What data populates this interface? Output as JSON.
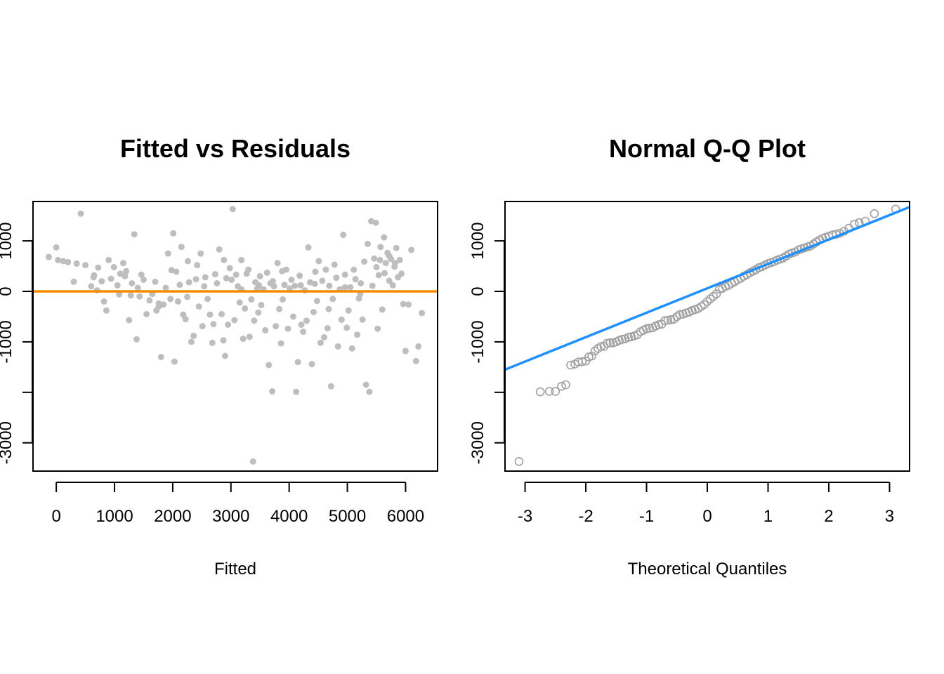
{
  "colors": {
    "scatter_points": "#bebebe",
    "qq_points": "#a0a0a0",
    "zero_line": "#ff8c00",
    "qq_line": "#1e90ff"
  },
  "chart_data": [
    {
      "type": "scatter",
      "title": "Fitted vs Residuals",
      "xlabel": "Fitted",
      "ylabel": "",
      "xlim": [
        -400,
        6550
      ],
      "ylim": [
        -3560,
        1780
      ],
      "x_ticks": [
        0,
        1000,
        2000,
        3000,
        4000,
        5000,
        6000
      ],
      "y_ticks": [
        -3000,
        -2000,
        -1000,
        0,
        1000
      ],
      "y_tick_labels": [
        "-3000",
        "",
        "-1000",
        "0",
        "1000"
      ],
      "reference_line": {
        "type": "horizontal",
        "y": 0
      },
      "marker": "filled-circle",
      "points": [
        [
          -130,
          680
        ],
        [
          0,
          870
        ],
        [
          30,
          620
        ],
        [
          120,
          600
        ],
        [
          300,
          190
        ],
        [
          350,
          550
        ],
        [
          420,
          1540
        ],
        [
          500,
          520
        ],
        [
          600,
          100
        ],
        [
          650,
          320
        ],
        [
          700,
          20
        ],
        [
          720,
          470
        ],
        [
          780,
          200
        ],
        [
          820,
          -200
        ],
        [
          860,
          -380
        ],
        [
          900,
          620
        ],
        [
          940,
          250
        ],
        [
          990,
          480
        ],
        [
          1050,
          120
        ],
        [
          1080,
          -60
        ],
        [
          1100,
          350
        ],
        [
          1150,
          560
        ],
        [
          1200,
          400
        ],
        [
          1250,
          -570
        ],
        [
          1280,
          -80
        ],
        [
          1300,
          160
        ],
        [
          1340,
          1130
        ],
        [
          1380,
          -950
        ],
        [
          1400,
          70
        ],
        [
          1430,
          -100
        ],
        [
          1460,
          330
        ],
        [
          1500,
          230
        ],
        [
          1550,
          -450
        ],
        [
          1600,
          -180
        ],
        [
          1650,
          -50
        ],
        [
          1700,
          190
        ],
        [
          1720,
          -380
        ],
        [
          1760,
          -240
        ],
        [
          1800,
          -1300
        ],
        [
          1840,
          -260
        ],
        [
          1880,
          70
        ],
        [
          1920,
          750
        ],
        [
          1960,
          -150
        ],
        [
          1980,
          420
        ],
        [
          2010,
          1150
        ],
        [
          2030,
          -1390
        ],
        [
          2060,
          390
        ],
        [
          2090,
          -200
        ],
        [
          2120,
          130
        ],
        [
          2150,
          880
        ],
        [
          2180,
          -460
        ],
        [
          2220,
          -550
        ],
        [
          2250,
          -110
        ],
        [
          2280,
          180
        ],
        [
          2320,
          -1000
        ],
        [
          2360,
          -880
        ],
        [
          2400,
          240
        ],
        [
          2420,
          520
        ],
        [
          2450,
          -300
        ],
        [
          2480,
          750
        ],
        [
          2510,
          -690
        ],
        [
          2540,
          100
        ],
        [
          2560,
          280
        ],
        [
          2600,
          -150
        ],
        [
          2640,
          -460
        ],
        [
          2680,
          -1020
        ],
        [
          2700,
          -650
        ],
        [
          2730,
          340
        ],
        [
          2760,
          160
        ],
        [
          2800,
          830
        ],
        [
          2840,
          -450
        ],
        [
          2870,
          -970
        ],
        [
          2900,
          -1280
        ],
        [
          2920,
          260
        ],
        [
          2950,
          -660
        ],
        [
          2980,
          460
        ],
        [
          3010,
          230
        ],
        [
          3030,
          1630
        ],
        [
          3060,
          -570
        ],
        [
          3090,
          330
        ],
        [
          3120,
          100
        ],
        [
          3150,
          -220
        ],
        [
          3180,
          620
        ],
        [
          3210,
          -940
        ],
        [
          3240,
          -340
        ],
        [
          3270,
          350
        ],
        [
          3300,
          430
        ],
        [
          3320,
          -900
        ],
        [
          3350,
          -160
        ],
        [
          3380,
          -3370
        ],
        [
          3400,
          -580
        ],
        [
          3420,
          180
        ],
        [
          3450,
          50
        ],
        [
          3470,
          -420
        ],
        [
          3500,
          300
        ],
        [
          3520,
          -270
        ],
        [
          3560,
          40
        ],
        [
          3590,
          -770
        ],
        [
          3620,
          370
        ],
        [
          3650,
          -1460
        ],
        [
          3680,
          160
        ],
        [
          3710,
          -1980
        ],
        [
          3740,
          100
        ],
        [
          3770,
          -690
        ],
        [
          3800,
          560
        ],
        [
          3830,
          -350
        ],
        [
          3860,
          -1030
        ],
        [
          3890,
          -160
        ],
        [
          3920,
          130
        ],
        [
          3950,
          430
        ],
        [
          3980,
          -740
        ],
        [
          4010,
          60
        ],
        [
          4040,
          230
        ],
        [
          4070,
          -500
        ],
        [
          4100,
          110
        ],
        [
          4120,
          -1990
        ],
        [
          4150,
          -1400
        ],
        [
          4180,
          310
        ],
        [
          4210,
          -660
        ],
        [
          4240,
          -800
        ],
        [
          4270,
          20
        ],
        [
          4300,
          -580
        ],
        [
          4330,
          870
        ],
        [
          4360,
          180
        ],
        [
          4390,
          -1440
        ],
        [
          4420,
          -410
        ],
        [
          4450,
          390
        ],
        [
          4480,
          -190
        ],
        [
          4510,
          600
        ],
        [
          4540,
          -1020
        ],
        [
          4570,
          210
        ],
        [
          4600,
          -910
        ],
        [
          4630,
          430
        ],
        [
          4660,
          -730
        ],
        [
          4690,
          110
        ],
        [
          4720,
          -1880
        ],
        [
          4750,
          -150
        ],
        [
          4780,
          530
        ],
        [
          4810,
          270
        ],
        [
          4840,
          -1090
        ],
        [
          4870,
          40
        ],
        [
          4900,
          -560
        ],
        [
          4930,
          1120
        ],
        [
          4960,
          330
        ],
        [
          4990,
          -720
        ],
        [
          5020,
          -380
        ],
        [
          5050,
          80
        ],
        [
          5080,
          -1130
        ],
        [
          5110,
          430
        ],
        [
          5140,
          240
        ],
        [
          5170,
          -860
        ],
        [
          5200,
          -140
        ],
        [
          5230,
          160
        ],
        [
          5260,
          -560
        ],
        [
          5290,
          590
        ],
        [
          5320,
          -1850
        ],
        [
          5350,
          940
        ],
        [
          5380,
          -1990
        ],
        [
          5410,
          1390
        ],
        [
          5430,
          110
        ],
        [
          5460,
          650
        ],
        [
          5490,
          1360
        ],
        [
          5520,
          -740
        ],
        [
          5540,
          320
        ],
        [
          5570,
          880
        ],
        [
          5600,
          -360
        ],
        [
          5630,
          1070
        ],
        [
          5660,
          560
        ],
        [
          5690,
          760
        ],
        [
          5720,
          210
        ],
        [
          5750,
          640
        ],
        [
          5780,
          120
        ],
        [
          5810,
          490
        ],
        [
          5840,
          860
        ],
        [
          5870,
          280
        ],
        [
          5900,
          620
        ],
        [
          5930,
          350
        ],
        [
          5960,
          -250
        ],
        [
          6000,
          -1180
        ],
        [
          6050,
          -260
        ],
        [
          6100,
          820
        ],
        [
          6180,
          -1380
        ],
        [
          6220,
          -1090
        ],
        [
          6280,
          -430
        ],
        [
          200,
          580
        ],
        [
          640,
          280
        ],
        [
          1180,
          300
        ],
        [
          1760,
          -300
        ],
        [
          2260,
          600
        ],
        [
          2880,
          620
        ],
        [
          3180,
          40
        ],
        [
          3480,
          120
        ],
        [
          3720,
          200
        ],
        [
          3880,
          400
        ],
        [
          4200,
          120
        ],
        [
          4440,
          150
        ],
        [
          4680,
          -350
        ],
        [
          4960,
          80
        ],
        [
          5220,
          -50
        ],
        [
          5500,
          480
        ],
        [
          5560,
          620
        ],
        [
          5640,
          360
        ],
        [
          5720,
          700
        ],
        [
          5820,
          560
        ]
      ]
    },
    {
      "type": "scatter",
      "title": "Normal Q-Q Plot",
      "xlabel": "Theoretical Quantiles",
      "ylabel": "",
      "xlim": [
        -3.33,
        3.33
      ],
      "ylim": [
        -3560,
        1780
      ],
      "x_ticks": [
        -3,
        -2,
        -1,
        0,
        1,
        2,
        3
      ],
      "y_ticks": [
        -3000,
        -2000,
        -1000,
        0,
        1000
      ],
      "y_tick_labels": [
        "-3000",
        "",
        "-1000",
        "0",
        "1000"
      ],
      "reference_line": {
        "type": "qqline",
        "x1": -3.33,
        "y1": -1550,
        "x2": 3.33,
        "y2": 1670
      },
      "marker": "open-circle",
      "points": [
        [
          -3.1,
          -3370
        ],
        [
          -2.75,
          -1990
        ],
        [
          -2.6,
          -1980
        ],
        [
          -2.5,
          -1980
        ],
        [
          -2.4,
          -1880
        ],
        [
          -2.33,
          -1850
        ],
        [
          -2.25,
          -1460
        ],
        [
          -2.18,
          -1440
        ],
        [
          -2.12,
          -1400
        ],
        [
          -2.06,
          -1390
        ],
        [
          -2.0,
          -1380
        ],
        [
          -1.95,
          -1300
        ],
        [
          -1.9,
          -1280
        ],
        [
          -1.85,
          -1180
        ],
        [
          -1.8,
          -1130
        ],
        [
          -1.75,
          -1090
        ],
        [
          -1.7,
          -1090
        ],
        [
          -1.65,
          -1030
        ],
        [
          -1.6,
          -1020
        ],
        [
          -1.55,
          -1020
        ],
        [
          -1.5,
          -1000
        ],
        [
          -1.45,
          -970
        ],
        [
          -1.4,
          -950
        ],
        [
          -1.35,
          -940
        ],
        [
          -1.3,
          -910
        ],
        [
          -1.25,
          -900
        ],
        [
          -1.2,
          -880
        ],
        [
          -1.15,
          -860
        ],
        [
          -1.1,
          -800
        ],
        [
          -1.05,
          -770
        ],
        [
          -1.0,
          -740
        ],
        [
          -0.95,
          -730
        ],
        [
          -0.9,
          -720
        ],
        [
          -0.85,
          -690
        ],
        [
          -0.8,
          -660
        ],
        [
          -0.75,
          -650
        ],
        [
          -0.7,
          -580
        ],
        [
          -0.65,
          -570
        ],
        [
          -0.6,
          -560
        ],
        [
          -0.55,
          -550
        ],
        [
          -0.5,
          -500
        ],
        [
          -0.45,
          -460
        ],
        [
          -0.4,
          -450
        ],
        [
          -0.35,
          -430
        ],
        [
          -0.3,
          -410
        ],
        [
          -0.25,
          -380
        ],
        [
          -0.2,
          -360
        ],
        [
          -0.15,
          -340
        ],
        [
          -0.1,
          -300
        ],
        [
          -0.05,
          -260
        ],
        [
          0.0,
          -200
        ],
        [
          0.05,
          -150
        ],
        [
          0.1,
          -100
        ],
        [
          0.15,
          -50
        ],
        [
          0.2,
          40
        ],
        [
          0.25,
          60
        ],
        [
          0.3,
          100
        ],
        [
          0.35,
          120
        ],
        [
          0.4,
          160
        ],
        [
          0.45,
          190
        ],
        [
          0.5,
          230
        ],
        [
          0.55,
          260
        ],
        [
          0.6,
          300
        ],
        [
          0.65,
          330
        ],
        [
          0.7,
          370
        ],
        [
          0.75,
          400
        ],
        [
          0.8,
          430
        ],
        [
          0.85,
          470
        ],
        [
          0.9,
          490
        ],
        [
          0.95,
          520
        ],
        [
          1.0,
          550
        ],
        [
          1.05,
          570
        ],
        [
          1.1,
          590
        ],
        [
          1.15,
          620
        ],
        [
          1.2,
          640
        ],
        [
          1.25,
          660
        ],
        [
          1.3,
          700
        ],
        [
          1.35,
          740
        ],
        [
          1.4,
          760
        ],
        [
          1.45,
          780
        ],
        [
          1.5,
          820
        ],
        [
          1.55,
          840
        ],
        [
          1.6,
          860
        ],
        [
          1.65,
          880
        ],
        [
          1.7,
          900
        ],
        [
          1.75,
          940
        ],
        [
          1.8,
          980
        ],
        [
          1.85,
          1020
        ],
        [
          1.9,
          1050
        ],
        [
          1.95,
          1070
        ],
        [
          2.0,
          1090
        ],
        [
          2.06,
          1120
        ],
        [
          2.12,
          1130
        ],
        [
          2.18,
          1150
        ],
        [
          2.25,
          1190
        ],
        [
          2.33,
          1250
        ],
        [
          2.42,
          1330
        ],
        [
          2.5,
          1360
        ],
        [
          2.6,
          1390
        ],
        [
          2.75,
          1540
        ],
        [
          3.1,
          1630
        ]
      ]
    }
  ]
}
